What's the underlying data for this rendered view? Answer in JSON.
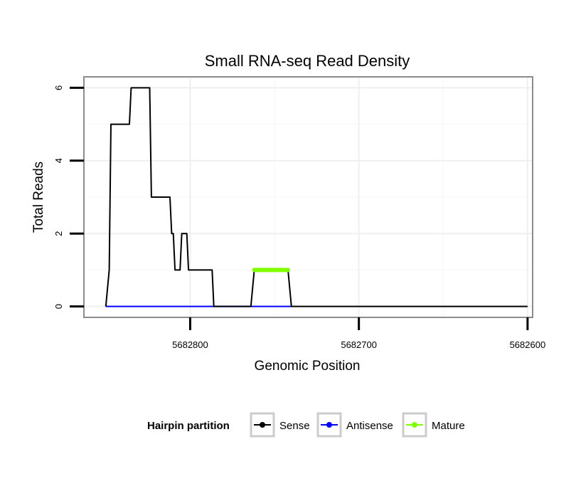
{
  "chart_data": {
    "type": "line",
    "title": "Small RNA-seq Read Density",
    "xlabel": "Genomic Position",
    "ylabel": "Total Reads",
    "x_reversed": true,
    "xlim": [
      5682863,
      5682597
    ],
    "ylim": [
      -0.3,
      6.3
    ],
    "x_ticks": [
      5682800,
      5682700,
      5682600
    ],
    "x_tick_labels": [
      "5682800",
      "5682700",
      "5682600"
    ],
    "y_ticks": [
      0,
      2,
      4,
      6
    ],
    "y_tick_labels": [
      "0",
      "2",
      "4",
      "6"
    ],
    "grid": true,
    "legend": {
      "title": "Hairpin partition",
      "position": "bottom",
      "entries": [
        {
          "label": "Sense",
          "color": "#000000"
        },
        {
          "label": "Antisense",
          "color": "#0000ff"
        },
        {
          "label": "Mature",
          "color": "#7fff00"
        }
      ]
    },
    "series": [
      {
        "name": "Sense",
        "color": "#000000",
        "x": [
          5682850,
          5682848,
          5682847,
          5682836,
          5682835,
          5682824,
          5682823,
          5682812,
          5682811,
          5682810,
          5682809,
          5682806,
          5682805,
          5682802,
          5682801,
          5682787,
          5682786,
          5682764,
          5682762,
          5682742,
          5682740,
          5682600
        ],
        "y": [
          0,
          1,
          5,
          5,
          6,
          6,
          3,
          3,
          2,
          2,
          1,
          1,
          2,
          2,
          1,
          1,
          0,
          0,
          1,
          1,
          0,
          0
        ]
      },
      {
        "name": "Antisense",
        "color": "#0000ff",
        "x": [
          5682850,
          5682740
        ],
        "y": [
          0,
          0
        ]
      },
      {
        "name": "Mature",
        "color": "#7fff00",
        "x": [
          5682762,
          5682742
        ],
        "y": [
          1,
          1
        ]
      }
    ]
  }
}
